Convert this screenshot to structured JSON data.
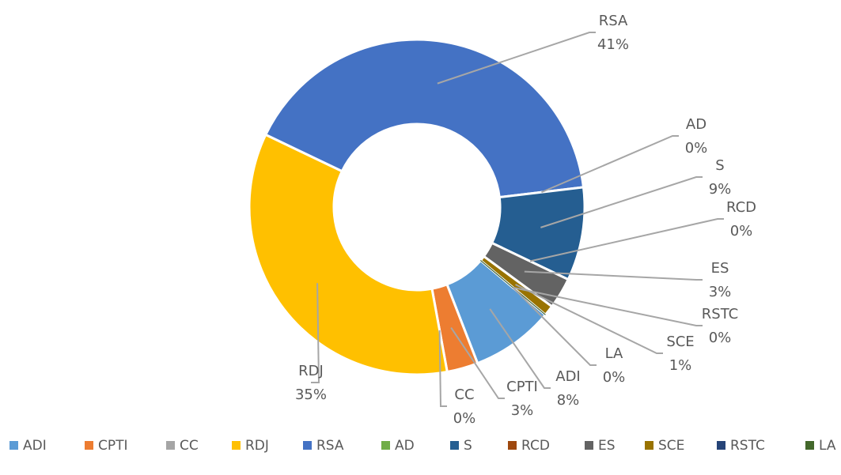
{
  "chart_data": {
    "type": "donut",
    "categories": [
      "ADI",
      "CPTI",
      "CC",
      "RDJ",
      "RSA",
      "AD",
      "S",
      "RCD",
      "ES",
      "SCE",
      "RSTC",
      "LA"
    ],
    "values": [
      8,
      3,
      0,
      35,
      41,
      0,
      9,
      0,
      3,
      1,
      0,
      0
    ],
    "value_labels": [
      "8%",
      "3%",
      "0%",
      "35%",
      "41%",
      "0%",
      "9%",
      "0%",
      "3%",
      "1%",
      "0%",
      "0%"
    ],
    "colors": [
      "#5b9bd5",
      "#ed7d31",
      "#a5a5a5",
      "#ffc000",
      "#4472c4",
      "#70ad47",
      "#255e91",
      "#9e480e",
      "#636363",
      "#997300",
      "#264478",
      "#43682b"
    ],
    "legend": "bottom"
  }
}
